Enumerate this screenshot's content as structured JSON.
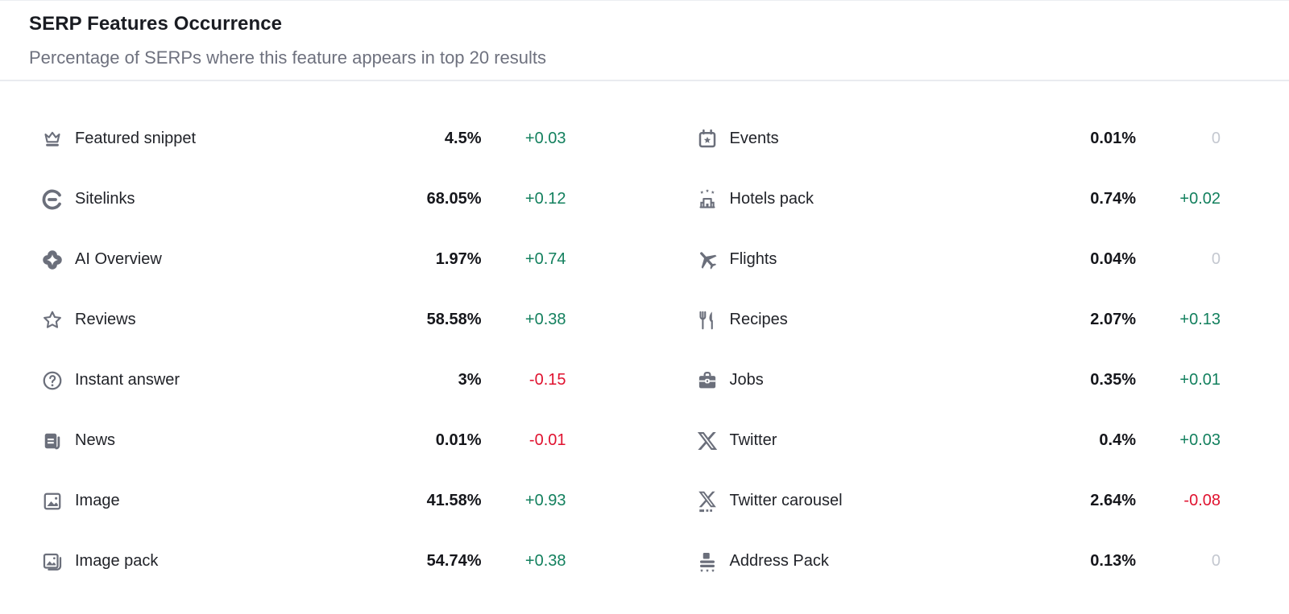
{
  "header": {
    "title": "SERP Features Occurrence",
    "subtitle": "Percentage of SERPs where this feature appears in top 20 results"
  },
  "colors": {
    "positive": "#13805e",
    "negative": "#e0122f",
    "neutral": "#c4c8d0",
    "icon": "#6b6f7b"
  },
  "features": {
    "columns": [
      {
        "rows": [
          {
            "icon": "crown-icon",
            "label": "Featured snippet",
            "value": "4.5%",
            "change": "+0.03",
            "trend": "positive"
          },
          {
            "icon": "sitelinks-icon",
            "label": "Sitelinks",
            "value": "68.05%",
            "change": "+0.12",
            "trend": "positive"
          },
          {
            "icon": "ai-overview-icon",
            "label": "AI Overview",
            "value": "1.97%",
            "change": "+0.74",
            "trend": "positive"
          },
          {
            "icon": "star-icon",
            "label": "Reviews",
            "value": "58.58%",
            "change": "+0.38",
            "trend": "positive"
          },
          {
            "icon": "question-bubble-icon",
            "label": "Instant answer",
            "value": "3%",
            "change": "-0.15",
            "trend": "negative"
          },
          {
            "icon": "news-icon",
            "label": "News",
            "value": "0.01%",
            "change": "-0.01",
            "trend": "negative"
          },
          {
            "icon": "image-icon",
            "label": "Image",
            "value": "41.58%",
            "change": "+0.93",
            "trend": "positive"
          },
          {
            "icon": "image-pack-icon",
            "label": "Image pack",
            "value": "54.74%",
            "change": "+0.38",
            "trend": "positive"
          }
        ]
      },
      {
        "rows": [
          {
            "icon": "events-icon",
            "label": "Events",
            "value": "0.01%",
            "change": "0",
            "trend": "neutral"
          },
          {
            "icon": "hotels-pack-icon",
            "label": "Hotels pack",
            "value": "0.74%",
            "change": "+0.02",
            "trend": "positive"
          },
          {
            "icon": "flights-icon",
            "label": "Flights",
            "value": "0.04%",
            "change": "0",
            "trend": "neutral"
          },
          {
            "icon": "recipes-icon",
            "label": "Recipes",
            "value": "2.07%",
            "change": "+0.13",
            "trend": "positive"
          },
          {
            "icon": "jobs-icon",
            "label": "Jobs",
            "value": "0.35%",
            "change": "+0.01",
            "trend": "positive"
          },
          {
            "icon": "twitter-icon",
            "label": "Twitter",
            "value": "0.4%",
            "change": "+0.03",
            "trend": "positive"
          },
          {
            "icon": "twitter-carousel-icon",
            "label": "Twitter carousel",
            "value": "2.64%",
            "change": "-0.08",
            "trend": "negative"
          },
          {
            "icon": "address-pack-icon",
            "label": "Address Pack",
            "value": "0.13%",
            "change": "0",
            "trend": "neutral"
          }
        ]
      }
    ]
  }
}
